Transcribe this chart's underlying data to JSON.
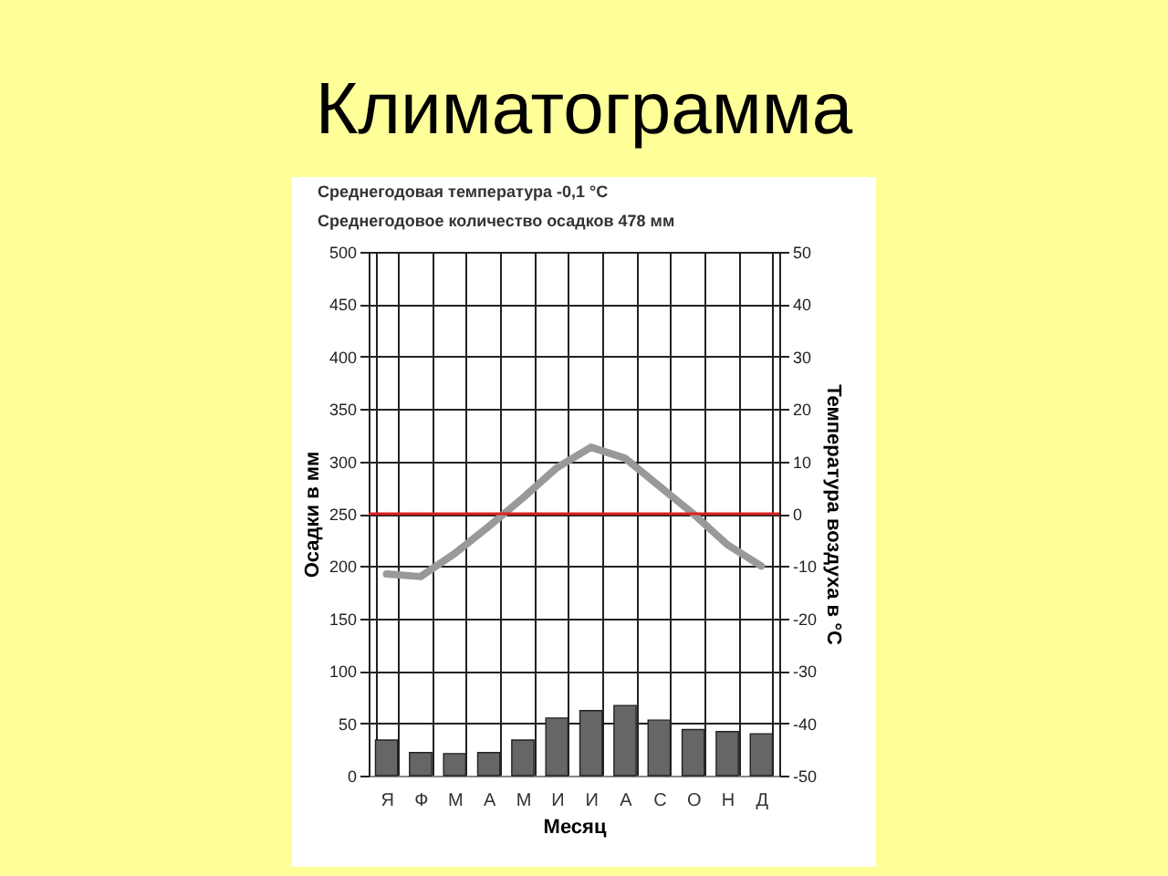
{
  "chart_data": {
    "type": "bar",
    "title": "Климатограмма",
    "subtitle": "Среднегодовая температура -0,1 °С",
    "annotations": [
      "Среднегодовое количество осадков 478 мм"
    ],
    "xlabel": "Месяц",
    "ylabel": "Осадки в мм",
    "y2label": "Температура воздуха в °С",
    "categories": [
      "Я",
      "Ф",
      "М",
      "А",
      "М",
      "И",
      "И",
      "А",
      "С",
      "О",
      "Н",
      "Д"
    ],
    "series": [
      {
        "color": "#666666",
        "values": [
          34,
          22,
          21,
          22,
          34,
          55,
          62,
          67,
          53,
          44,
          42,
          40
        ]
      },
      {
        "type": "line",
        "axis": "y2",
        "color": "#999999",
        "values": [
          -11.5,
          -12,
          -7.6,
          -2.4,
          3,
          8.8,
          12.7,
          10.6,
          5.3,
          0,
          -5.9,
          -10
        ]
      }
    ],
    "ylim": [
      0,
      500
    ],
    "yticks": [
      0,
      50,
      100,
      150,
      200,
      250,
      300,
      350,
      400,
      450,
      500
    ],
    "y2lim": [
      -50,
      50
    ],
    "y2ticks": [
      -50,
      -40,
      -30,
      -20,
      -10,
      0,
      10,
      20,
      30,
      40,
      50
    ],
    "ref_lines": [
      {
        "axis": "y2",
        "value": 0,
        "color": "#dd2222"
      }
    ],
    "grid": true,
    "marker": "none",
    "line_style": "solid"
  }
}
